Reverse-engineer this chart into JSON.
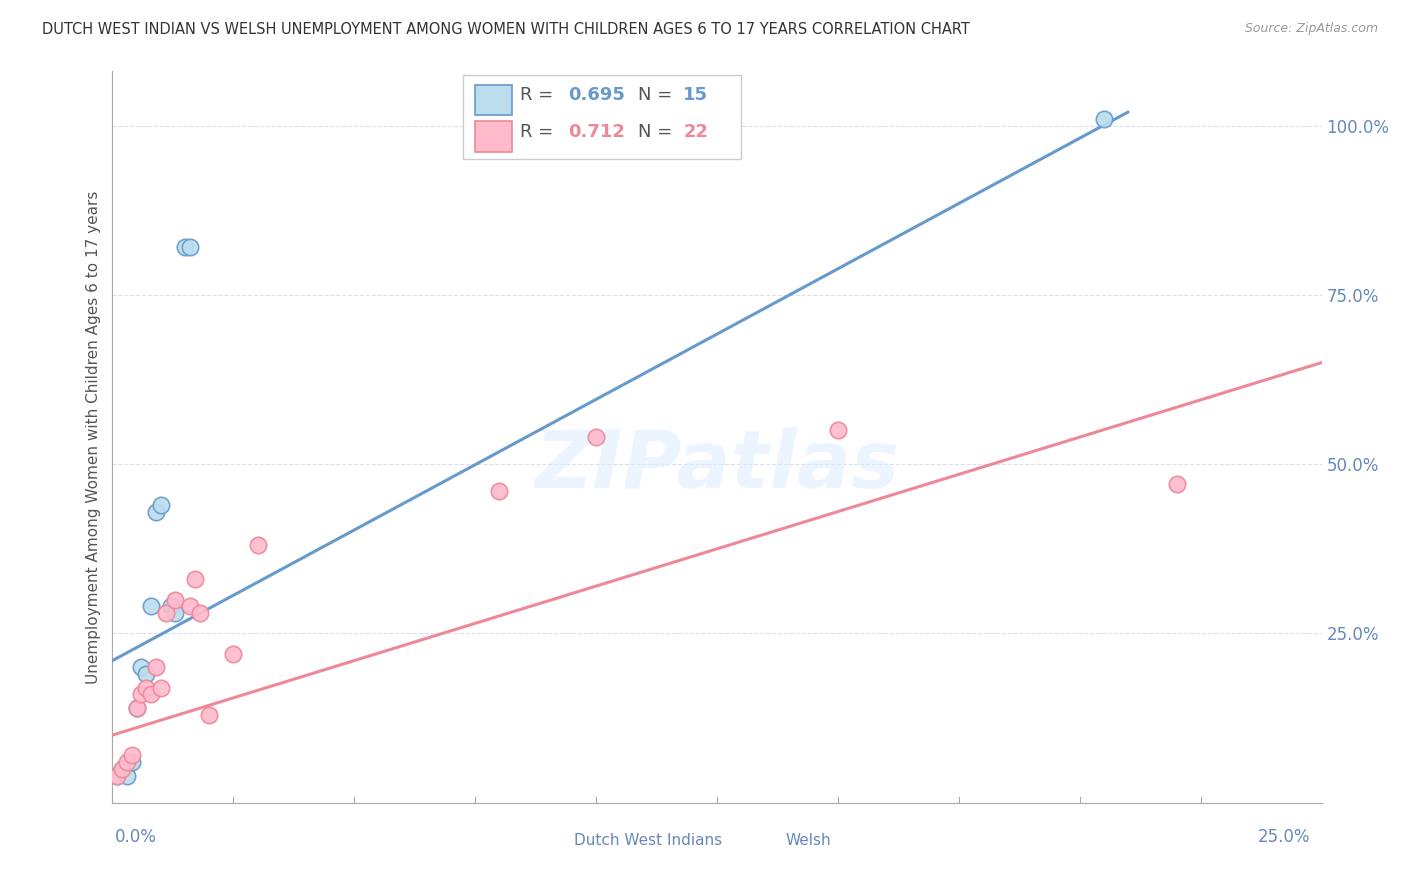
{
  "title": "DUTCH WEST INDIAN VS WELSH UNEMPLOYMENT AMONG WOMEN WITH CHILDREN AGES 6 TO 17 YEARS CORRELATION CHART",
  "source": "Source: ZipAtlas.com",
  "ylabel": "Unemployment Among Women with Children Ages 6 to 17 years",
  "xlim": [
    0,
    0.25
  ],
  "ylim": [
    0,
    1.08
  ],
  "yticks": [
    0.0,
    0.25,
    0.5,
    0.75,
    1.0
  ],
  "ytick_labels": [
    "",
    "25.0%",
    "50.0%",
    "75.0%",
    "100.0%"
  ],
  "watermark": "ZIPatlas",
  "blue_color": "#6699CC",
  "pink_color": "#EE8899",
  "blue_face": "#BBDDEE",
  "pink_face": "#FFBBCC",
  "axis_label_color": "#6688BB",
  "grid_color": "#DDDDEE",
  "title_color": "#333333",
  "dutch_x": [
    0.001,
    0.002,
    0.003,
    0.004,
    0.005,
    0.006,
    0.007,
    0.008,
    0.009,
    0.01,
    0.012,
    0.013,
    0.015,
    0.016,
    0.205
  ],
  "dutch_y": [
    0.04,
    0.05,
    0.04,
    0.06,
    0.14,
    0.2,
    0.19,
    0.29,
    0.43,
    0.44,
    0.29,
    0.28,
    0.82,
    0.82,
    1.01
  ],
  "welsh_x": [
    0.001,
    0.002,
    0.003,
    0.004,
    0.005,
    0.006,
    0.007,
    0.008,
    0.009,
    0.01,
    0.011,
    0.013,
    0.016,
    0.017,
    0.018,
    0.02,
    0.025,
    0.03,
    0.08,
    0.1,
    0.15,
    0.22
  ],
  "welsh_y": [
    0.04,
    0.05,
    0.06,
    0.07,
    0.14,
    0.16,
    0.17,
    0.16,
    0.2,
    0.17,
    0.28,
    0.3,
    0.29,
    0.33,
    0.28,
    0.13,
    0.22,
    0.38,
    0.46,
    0.54,
    0.55,
    0.47
  ],
  "blue_line_x": [
    0.0,
    0.21
  ],
  "blue_line_y": [
    0.21,
    1.02
  ],
  "pink_line_x": [
    0.0,
    0.25
  ],
  "pink_line_y": [
    0.1,
    0.65
  ],
  "legend_items": [
    {
      "label_r": "R = ",
      "r_val": "0.695",
      "label_n": "  N = ",
      "n_val": "15"
    },
    {
      "label_r": "R = ",
      "r_val": "0.712",
      "label_n": "  N = ",
      "n_val": "22"
    }
  ]
}
